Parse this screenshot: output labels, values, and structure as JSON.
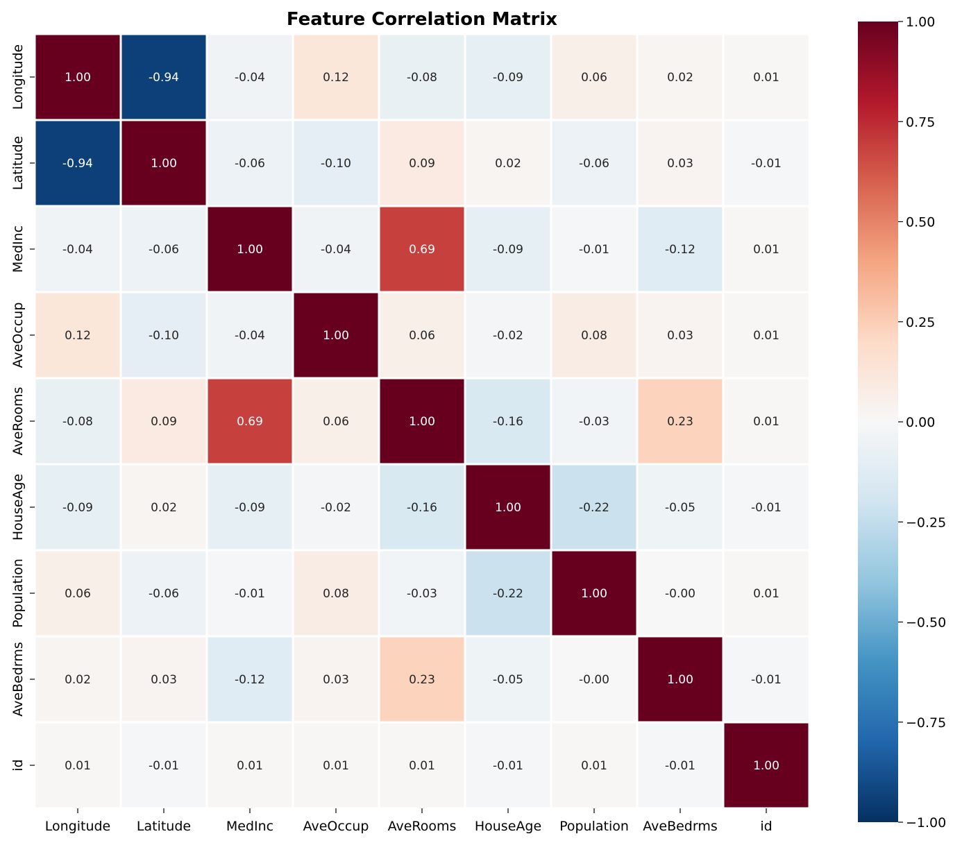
{
  "chart_data": {
    "type": "heatmap",
    "title": "Feature Correlation Matrix",
    "xlabel": "",
    "ylabel": "",
    "rows": [
      "Longitude",
      "Latitude",
      "MedInc",
      "AveOccup",
      "AveRooms",
      "HouseAge",
      "Population",
      "AveBedrms",
      "id"
    ],
    "columns": [
      "Longitude",
      "Latitude",
      "MedInc",
      "AveOccup",
      "AveRooms",
      "HouseAge",
      "Population",
      "AveBedrms",
      "id"
    ],
    "values": [
      [
        1.0,
        -0.94,
        -0.04,
        0.12,
        -0.08,
        -0.09,
        0.06,
        0.02,
        0.01
      ],
      [
        -0.94,
        1.0,
        -0.06,
        -0.1,
        0.09,
        0.02,
        -0.06,
        0.03,
        -0.01
      ],
      [
        -0.04,
        -0.06,
        1.0,
        -0.04,
        0.69,
        -0.09,
        -0.01,
        -0.12,
        0.01
      ],
      [
        0.12,
        -0.1,
        -0.04,
        1.0,
        0.06,
        -0.02,
        0.08,
        0.03,
        0.01
      ],
      [
        -0.08,
        0.09,
        0.69,
        0.06,
        1.0,
        -0.16,
        -0.03,
        0.23,
        0.01
      ],
      [
        -0.09,
        0.02,
        -0.09,
        -0.02,
        -0.16,
        1.0,
        -0.22,
        -0.05,
        -0.01
      ],
      [
        0.06,
        -0.06,
        -0.01,
        0.08,
        -0.03,
        -0.22,
        1.0,
        -0.0,
        0.01
      ],
      [
        0.02,
        0.03,
        -0.12,
        0.03,
        0.23,
        -0.05,
        -0.0,
        1.0,
        -0.01
      ],
      [
        0.01,
        -0.01,
        0.01,
        0.01,
        0.01,
        -0.01,
        0.01,
        -0.01,
        1.0
      ]
    ],
    "value_labels": [
      [
        "1.00",
        "-0.94",
        "-0.04",
        "0.12",
        "-0.08",
        "-0.09",
        "0.06",
        "0.02",
        "0.01"
      ],
      [
        "-0.94",
        "1.00",
        "-0.06",
        "-0.10",
        "0.09",
        "0.02",
        "-0.06",
        "0.03",
        "-0.01"
      ],
      [
        "-0.04",
        "-0.06",
        "1.00",
        "-0.04",
        "0.69",
        "-0.09",
        "-0.01",
        "-0.12",
        "0.01"
      ],
      [
        "0.12",
        "-0.10",
        "-0.04",
        "1.00",
        "0.06",
        "-0.02",
        "0.08",
        "0.03",
        "0.01"
      ],
      [
        "-0.08",
        "0.09",
        "0.69",
        "0.06",
        "1.00",
        "-0.16",
        "-0.03",
        "0.23",
        "0.01"
      ],
      [
        "-0.09",
        "0.02",
        "-0.09",
        "-0.02",
        "-0.16",
        "1.00",
        "-0.22",
        "-0.05",
        "-0.01"
      ],
      [
        "0.06",
        "-0.06",
        "-0.01",
        "0.08",
        "-0.03",
        "-0.22",
        "1.00",
        "-0.00",
        "0.01"
      ],
      [
        "0.02",
        "0.03",
        "-0.12",
        "0.03",
        "0.23",
        "-0.05",
        "-0.00",
        "1.00",
        "-0.01"
      ],
      [
        "0.01",
        "-0.01",
        "0.01",
        "0.01",
        "0.01",
        "-0.01",
        "0.01",
        "-0.01",
        "1.00"
      ]
    ],
    "colorbar": {
      "colormap": "RdBu_r",
      "range": [
        -1.0,
        1.0
      ],
      "ticks": [
        1.0,
        0.75,
        0.5,
        0.25,
        0.0,
        -0.25,
        -0.5,
        -0.75,
        -1.0
      ],
      "tick_labels": [
        "1.00",
        "0.75",
        "0.50",
        "0.25",
        "0.00",
        "−0.25",
        "−0.50",
        "−0.75",
        "−1.00"
      ],
      "position": "right"
    },
    "grid": false,
    "cell_border_color": "#ffffff"
  }
}
